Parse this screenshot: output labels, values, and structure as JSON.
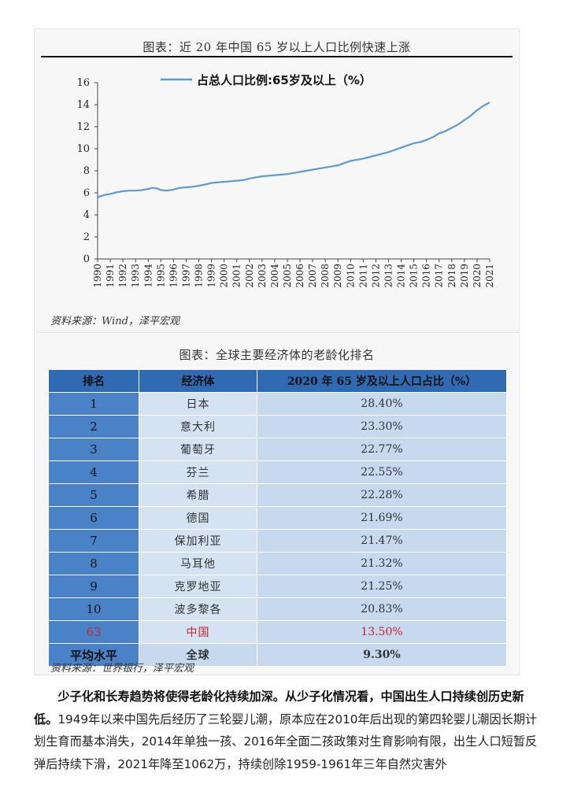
{
  "chart_panel": {
    "title": "图表：近 20 年中国 65 岁以上人口比例快速上涨",
    "source": "资料来源：Wind，泽平宏观"
  },
  "chart_data": {
    "type": "line",
    "title": "",
    "series": [
      {
        "name": "占总人口比例:65岁及以上（%）",
        "color": "#5b9bd5",
        "points": [
          [
            1990,
            5.6
          ],
          [
            1990.5,
            5.8
          ],
          [
            1991,
            5.9
          ],
          [
            1991.5,
            6.05
          ],
          [
            1992,
            6.15
          ],
          [
            1992.5,
            6.2
          ],
          [
            1993,
            6.2
          ],
          [
            1993.5,
            6.25
          ],
          [
            1994,
            6.35
          ],
          [
            1994.3,
            6.45
          ],
          [
            1994.7,
            6.4
          ],
          [
            1995,
            6.25
          ],
          [
            1995.5,
            6.2
          ],
          [
            1996,
            6.3
          ],
          [
            1996.5,
            6.45
          ],
          [
            1997,
            6.5
          ],
          [
            1997.5,
            6.55
          ],
          [
            1998,
            6.65
          ],
          [
            1998.5,
            6.75
          ],
          [
            1999,
            6.9
          ],
          [
            1999.5,
            6.95
          ],
          [
            2000,
            7.0
          ],
          [
            2000.5,
            7.05
          ],
          [
            2001,
            7.1
          ],
          [
            2001.5,
            7.15
          ],
          [
            2002,
            7.3
          ],
          [
            2002.5,
            7.4
          ],
          [
            2003,
            7.5
          ],
          [
            2003.5,
            7.55
          ],
          [
            2004,
            7.6
          ],
          [
            2004.5,
            7.65
          ],
          [
            2005,
            7.7
          ],
          [
            2005.5,
            7.8
          ],
          [
            2006,
            7.9
          ],
          [
            2006.5,
            8.0
          ],
          [
            2007,
            8.1
          ],
          [
            2007.5,
            8.2
          ],
          [
            2008,
            8.3
          ],
          [
            2008.5,
            8.4
          ],
          [
            2009,
            8.5
          ],
          [
            2009.5,
            8.7
          ],
          [
            2010,
            8.9
          ],
          [
            2010.5,
            9.0
          ],
          [
            2011,
            9.1
          ],
          [
            2011.5,
            9.25
          ],
          [
            2012,
            9.4
          ],
          [
            2012.5,
            9.55
          ],
          [
            2013,
            9.7
          ],
          [
            2013.5,
            9.9
          ],
          [
            2014,
            10.1
          ],
          [
            2014.5,
            10.3
          ],
          [
            2015,
            10.5
          ],
          [
            2015.5,
            10.6
          ],
          [
            2016,
            10.8
          ],
          [
            2016.5,
            11.05
          ],
          [
            2017,
            11.4
          ],
          [
            2017.5,
            11.6
          ],
          [
            2018,
            11.9
          ],
          [
            2018.5,
            12.2
          ],
          [
            2019,
            12.6
          ],
          [
            2019.5,
            13.0
          ],
          [
            2020,
            13.5
          ],
          [
            2020.5,
            13.9
          ],
          [
            2021,
            14.2
          ]
        ]
      }
    ],
    "x_categories": [
      "1990",
      "1991",
      "1992",
      "1993",
      "1994",
      "1995",
      "1996",
      "1997",
      "1998",
      "1999",
      "2000",
      "2001",
      "2002",
      "2003",
      "2004",
      "2005",
      "2006",
      "2007",
      "2008",
      "2009",
      "2010",
      "2011",
      "2012",
      "2013",
      "2014",
      "2015",
      "2016",
      "2017",
      "2018",
      "2019",
      "2020",
      "2021"
    ],
    "y_ticks": [
      0,
      2,
      4,
      6,
      8,
      10,
      12,
      14,
      16
    ],
    "ylim": [
      0,
      16
    ],
    "xlim": [
      1990,
      2021
    ],
    "xlabel": "",
    "ylabel": "",
    "grid": false,
    "legend_position": "top"
  },
  "table_panel": {
    "title": "图表：全球主要经济体的老龄化排名",
    "source": "资料来源：世界银行，泽平宏观",
    "headers": [
      "排名",
      "经济体",
      "2020 年 65 岁及以上人口占比（%）"
    ],
    "rows": [
      {
        "rank": "1",
        "economy": "日本",
        "value": "28.40%"
      },
      {
        "rank": "2",
        "economy": "意大利",
        "value": "23.30%"
      },
      {
        "rank": "3",
        "economy": "葡萄牙",
        "value": "22.77%"
      },
      {
        "rank": "4",
        "economy": "芬兰",
        "value": "22.55%"
      },
      {
        "rank": "5",
        "economy": "希腊",
        "value": "22.28%"
      },
      {
        "rank": "6",
        "economy": "德国",
        "value": "21.69%"
      },
      {
        "rank": "7",
        "economy": "保加利亚",
        "value": "21.47%"
      },
      {
        "rank": "8",
        "economy": "马耳他",
        "value": "21.32%"
      },
      {
        "rank": "9",
        "economy": "克罗地亚",
        "value": "21.25%"
      },
      {
        "rank": "10",
        "economy": "波多黎各",
        "value": "20.83%"
      },
      {
        "rank": "63",
        "economy": "中国",
        "value": "13.50%"
      }
    ],
    "highlight_color": "#d0202a",
    "average_row": {
      "rank": "平均水平",
      "economy": "全球",
      "value": "9.30%"
    }
  },
  "paragraph": {
    "bold": "少子化和长寿趋势将使得老龄化持续加深。从少子化情况看，中国出生人口持续创历史新低。",
    "text": "1949年以来中国先后经历了三轮婴儿潮，原本应在2010年后出现的第四轮婴儿潮因长期计划生育而基本消失，2014年单独一孩、2016年全面二孩政策对生育影响有限，出生人口短暂反弹后持续下滑，2021年降至1062万，持续创除1959-1961年三年自然灾害外"
  }
}
